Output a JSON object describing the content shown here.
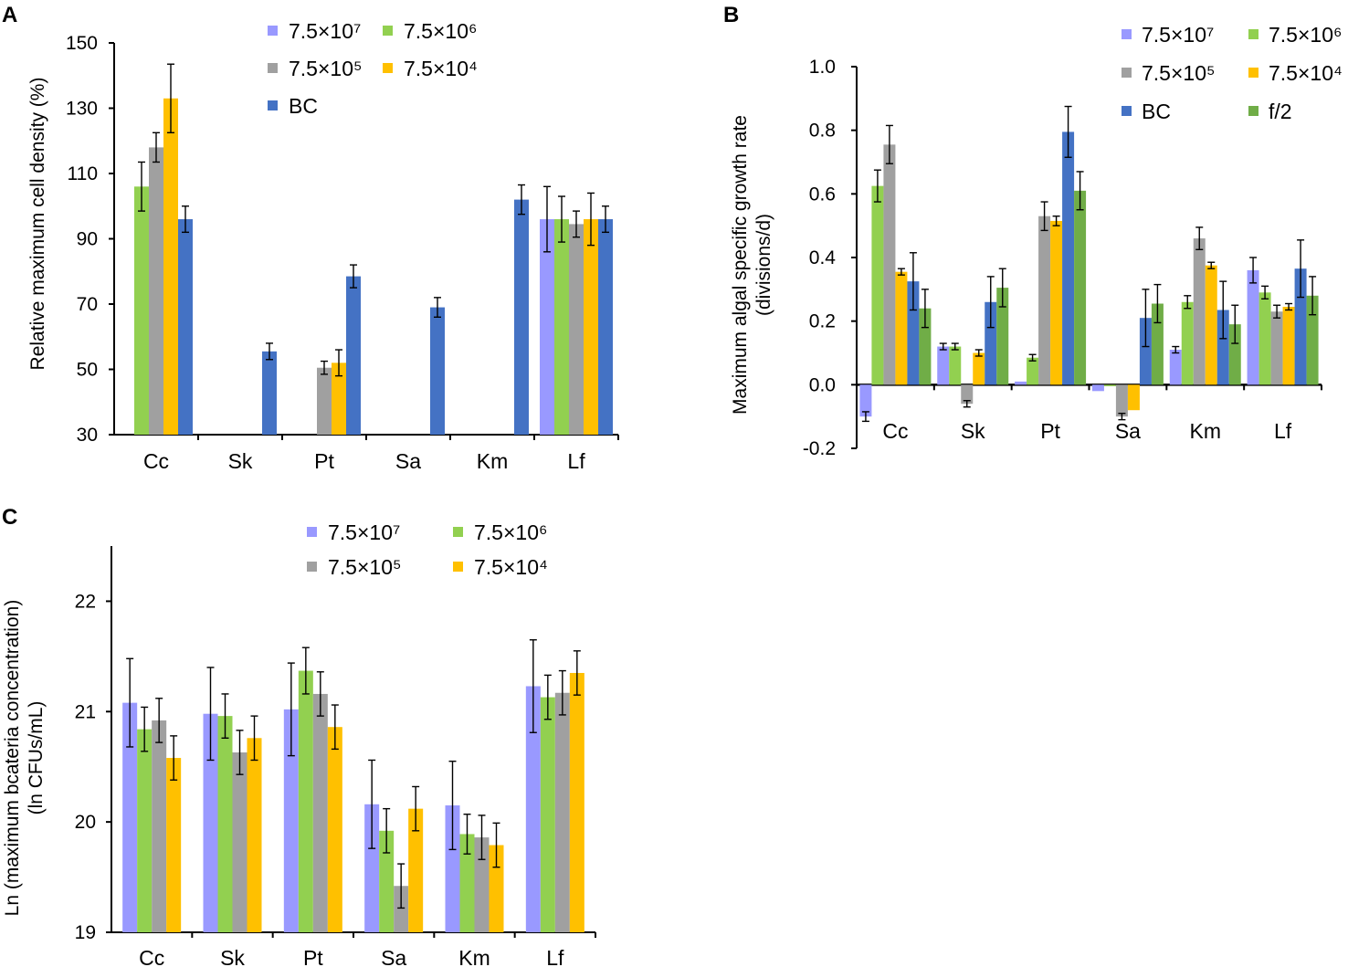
{
  "colors": {
    "s1": "#9999ff",
    "s2": "#92d050",
    "s3": "#a0a0a0",
    "s4": "#ffc000",
    "bc": "#4472c4",
    "f2": "#70ad47",
    "axis": "#000000"
  },
  "chart_data": [
    {
      "panel": "A",
      "type": "bar",
      "ylabel": "Relative maximum cell density (%)",
      "ylim": [
        30,
        150
      ],
      "yticks": [
        "30",
        "50",
        "70",
        "90",
        "110",
        "130",
        "150"
      ],
      "categories": [
        "Cc",
        "Sk",
        "Pt",
        "Sa",
        "Km",
        "Lf"
      ],
      "legend": [
        {
          "label": "7.5×10⁷",
          "color": "s1"
        },
        {
          "label": "7.5×10⁶",
          "color": "s2"
        },
        {
          "label": "7.5×10⁵",
          "color": "s3"
        },
        {
          "label": "7.5×10⁴",
          "color": "s4"
        },
        {
          "label": "BC",
          "color": "bc"
        }
      ],
      "series": [
        {
          "name": "7.5×10⁷",
          "color": "s1",
          "values": [
            null,
            null,
            null,
            null,
            null,
            96
          ],
          "errors": [
            0,
            0,
            0,
            0,
            0,
            10
          ]
        },
        {
          "name": "7.5×10⁶",
          "color": "s2",
          "values": [
            106,
            null,
            null,
            null,
            null,
            96
          ],
          "errors": [
            7.5,
            0,
            0,
            0,
            0,
            7
          ]
        },
        {
          "name": "7.5×10⁵",
          "color": "s3",
          "values": [
            118,
            null,
            50.5,
            null,
            null,
            94.5
          ],
          "errors": [
            4.5,
            0,
            2,
            0,
            0,
            4
          ]
        },
        {
          "name": "7.5×10⁴",
          "color": "s4",
          "values": [
            133,
            null,
            52,
            null,
            null,
            96
          ],
          "errors": [
            10.5,
            0,
            4,
            0,
            0,
            8
          ]
        },
        {
          "name": "BC",
          "color": "bc",
          "values": [
            96,
            55.5,
            78.5,
            69,
            102,
            96
          ],
          "errors": [
            4,
            2.5,
            3.5,
            3,
            4.5,
            4
          ]
        }
      ]
    },
    {
      "panel": "B",
      "type": "bar",
      "ylabel": "Maximum algal specific growth rate",
      "ylabel2": "(divisions/d)",
      "ylim": [
        -0.2,
        1.0
      ],
      "yticks": [
        "-0.2",
        "0.0",
        "0.2",
        "0.4",
        "0.6",
        "0.8",
        "1.0"
      ],
      "categories": [
        "Cc",
        "Sk",
        "Pt",
        "Sa",
        "Km",
        "Lf"
      ],
      "legend": [
        {
          "label": "7.5×10⁷",
          "color": "s1"
        },
        {
          "label": "7.5×10⁶",
          "color": "s2"
        },
        {
          "label": "7.5×10⁵",
          "color": "s3"
        },
        {
          "label": "7.5×10⁴",
          "color": "s4"
        },
        {
          "label": "BC",
          "color": "bc"
        },
        {
          "label": "f/2",
          "color": "f2"
        }
      ],
      "series": [
        {
          "name": "7.5×10⁷",
          "color": "s1",
          "values": [
            -0.1,
            0.12,
            0.01,
            -0.02,
            0.11,
            0.36
          ],
          "errors": [
            0.015,
            0.01,
            0,
            0,
            0.01,
            0.04
          ]
        },
        {
          "name": "7.5×10⁶",
          "color": "s2",
          "values": [
            0.625,
            0.12,
            0.085,
            0,
            0.26,
            0.29
          ],
          "errors": [
            0.05,
            0.01,
            0.01,
            0,
            0.02,
            0.02
          ]
        },
        {
          "name": "7.5×10⁵",
          "color": "s3",
          "values": [
            0.755,
            -0.06,
            0.53,
            -0.1,
            0.46,
            0.23
          ],
          "errors": [
            0.06,
            0.01,
            0.045,
            0.01,
            0.035,
            0.02
          ]
        },
        {
          "name": "7.5×10⁴",
          "color": "s4",
          "values": [
            0.355,
            0.1,
            0.515,
            -0.08,
            0.375,
            0.245
          ],
          "errors": [
            0.01,
            0.01,
            0.015,
            0,
            0.01,
            0.01
          ]
        },
        {
          "name": "BC",
          "color": "bc",
          "values": [
            0.325,
            0.26,
            0.795,
            0.21,
            0.235,
            0.365
          ],
          "errors": [
            0.09,
            0.08,
            0.08,
            0.09,
            0.09,
            0.09
          ]
        },
        {
          "name": "f/2",
          "color": "f2",
          "values": [
            0.24,
            0.305,
            0.61,
            0.255,
            0.19,
            0.28
          ],
          "errors": [
            0.06,
            0.06,
            0.06,
            0.06,
            0.06,
            0.06
          ]
        }
      ]
    },
    {
      "panel": "C",
      "type": "bar",
      "ylabel": "Ln (maximum bcateria concentration)",
      "ylabel2": "(ln CFUs/mL)",
      "ylim": [
        19,
        22.5
      ],
      "yticks": [
        "19",
        "20",
        "21",
        "22"
      ],
      "yticks_values": [
        19,
        20,
        21,
        22
      ],
      "categories": [
        "Cc",
        "Sk",
        "Pt",
        "Sa",
        "Km",
        "Lf"
      ],
      "legend": [
        {
          "label": "7.5×10⁷",
          "color": "s1"
        },
        {
          "label": "7.5×10⁶",
          "color": "s2"
        },
        {
          "label": "7.5×10⁵",
          "color": "s3"
        },
        {
          "label": "7.5×10⁴",
          "color": "s4"
        }
      ],
      "series": [
        {
          "name": "7.5×10⁷",
          "color": "s1",
          "values": [
            21.08,
            20.98,
            21.02,
            20.16,
            20.15,
            21.23
          ],
          "errors": [
            0.4,
            0.42,
            0.42,
            0.4,
            0.4,
            0.42
          ]
        },
        {
          "name": "7.5×10⁶",
          "color": "s2",
          "values": [
            20.84,
            20.96,
            21.37,
            19.92,
            19.89,
            21.13
          ],
          "errors": [
            0.2,
            0.2,
            0.21,
            0.2,
            0.18,
            0.2
          ]
        },
        {
          "name": "7.5×10⁵",
          "color": "s3",
          "values": [
            20.92,
            20.63,
            21.16,
            19.42,
            19.86,
            21.17
          ],
          "errors": [
            0.2,
            0.2,
            0.2,
            0.2,
            0.2,
            0.2
          ]
        },
        {
          "name": "7.5×10⁴",
          "color": "s4",
          "values": [
            20.58,
            20.76,
            20.86,
            20.12,
            19.79,
            21.35
          ],
          "errors": [
            0.2,
            0.2,
            0.2,
            0.2,
            0.2,
            0.2
          ]
        }
      ]
    }
  ]
}
